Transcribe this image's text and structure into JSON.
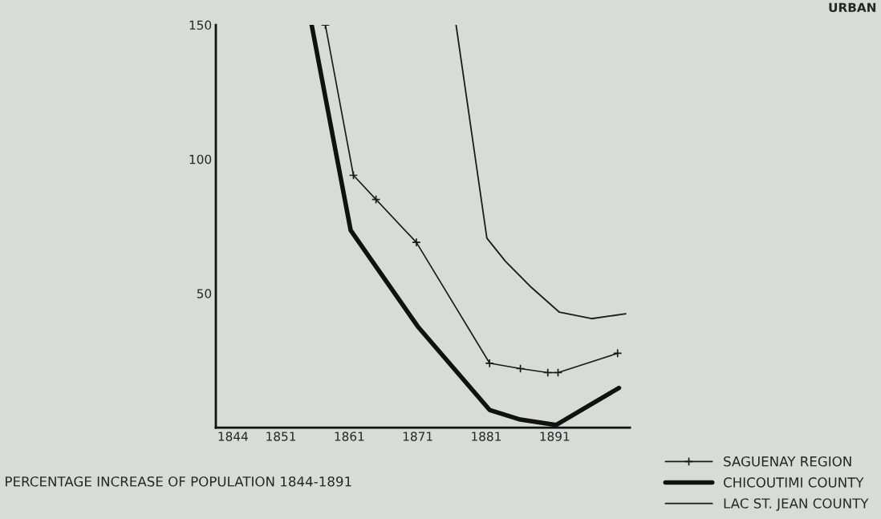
{
  "chart_data": {
    "type": "line",
    "title": "PERCENTAGE INCREASE OF POPULATION 1844-1891",
    "annotations": [
      "URBAN"
    ],
    "xlim": [
      1841.5,
      1902
    ],
    "xticks": [
      1844,
      1851,
      1861,
      1871,
      1881,
      1891
    ],
    "ylim": [
      0,
      150
    ],
    "yticks": [
      50,
      100,
      150
    ],
    "grid": false,
    "legend": "bottom right",
    "series": [
      {
        "name": "SAGUENAY REGION",
        "color": "#1a1a1a",
        "marker": "cross",
        "x": [
          1857.5,
          1861.6,
          1864.9,
          1870.8,
          1881.5,
          1886,
          1890,
          1891.5,
          1900.2
        ],
        "values": [
          150,
          94,
          85,
          69,
          24,
          22,
          20.5,
          20.5,
          27.7
        ]
      },
      {
        "name": "CHICOUTIMI COUNTY",
        "color": "#111111",
        "marker": "none",
        "x": [
          1855.5,
          1861.2,
          1871,
          1881.5,
          1886,
          1891.2,
          1900.4
        ],
        "values": [
          150,
          73.5,
          37.7,
          6.6,
          3,
          1,
          14.8
        ]
      },
      {
        "name": "LAC ST. JEAN COUNTY",
        "color": "#1a1a1a",
        "marker": "none",
        "x": [
          1876.6,
          1881.1,
          1883.8,
          1887.4,
          1891.7,
          1896.4,
          1901.4
        ],
        "values": [
          150,
          70.6,
          62,
          52.7,
          43,
          40.6,
          42.4
        ]
      }
    ]
  }
}
